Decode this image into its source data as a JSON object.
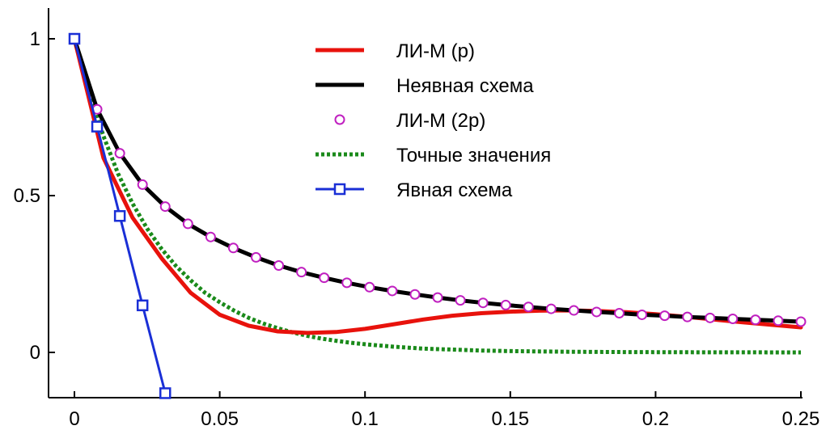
{
  "chart_data": {
    "type": "line",
    "xlim": [
      0,
      0.25
    ],
    "ylim": [
      -0.13,
      1.11
    ],
    "grid": false,
    "legend_placement": "top-center",
    "x_ticks": [
      0,
      0.05,
      0.1,
      0.15,
      0.2,
      0.25
    ],
    "x_tick_labels": [
      "0",
      "0.05",
      "0.1",
      "0.15",
      "0.2",
      "0.25"
    ],
    "y_ticks": [
      0,
      0.5,
      1
    ],
    "y_tick_labels": [
      "0",
      "0.5",
      "1"
    ],
    "series": [
      {
        "name": "ЛИ-М (p)",
        "color": "#e8120c",
        "style": "solid",
        "marker": "none",
        "x": [
          0,
          0.01,
          0.02,
          0.03,
          0.04,
          0.05,
          0.06,
          0.07,
          0.08,
          0.09,
          0.1,
          0.11,
          0.12,
          0.13,
          0.14,
          0.15,
          0.16,
          0.17,
          0.18,
          0.19,
          0.2,
          0.21,
          0.22,
          0.23,
          0.24,
          0.25
        ],
        "y": [
          1,
          0.62,
          0.43,
          0.3,
          0.19,
          0.12,
          0.085,
          0.067,
          0.062,
          0.065,
          0.075,
          0.09,
          0.105,
          0.117,
          0.125,
          0.13,
          0.133,
          0.134,
          0.132,
          0.128,
          0.122,
          0.114,
          0.105,
          0.096,
          0.088,
          0.08
        ]
      },
      {
        "name": "Неявная схема",
        "color": "#000000",
        "style": "solid",
        "marker": "none",
        "x": [
          0,
          0.0078125,
          0.015625,
          0.0234375,
          0.03125,
          0.0390625,
          0.046875,
          0.0546875,
          0.0625,
          0.0703125,
          0.078125,
          0.0859375,
          0.09375,
          0.1015625,
          0.109375,
          0.1171875,
          0.125,
          0.1328125,
          0.140625,
          0.1484375,
          0.15625,
          0.1640625,
          0.171875,
          0.1796875,
          0.1875,
          0.1953125,
          0.203125,
          0.2109375,
          0.21875,
          0.2265625,
          0.234375,
          0.2421875,
          0.25
        ],
        "y": [
          1,
          0.775,
          0.635,
          0.535,
          0.465,
          0.41,
          0.368,
          0.333,
          0.303,
          0.277,
          0.256,
          0.238,
          0.222,
          0.208,
          0.196,
          0.185,
          0.175,
          0.166,
          0.158,
          0.151,
          0.145,
          0.139,
          0.134,
          0.129,
          0.125,
          0.12,
          0.117,
          0.113,
          0.11,
          0.107,
          0.104,
          0.101,
          0.098
        ]
      },
      {
        "name": "ЛИ-М (2p)",
        "color": "#c020c0",
        "style": "none",
        "marker": "circle",
        "x": [
          0,
          0.0078125,
          0.015625,
          0.0234375,
          0.03125,
          0.0390625,
          0.046875,
          0.0546875,
          0.0625,
          0.0703125,
          0.078125,
          0.0859375,
          0.09375,
          0.1015625,
          0.109375,
          0.1171875,
          0.125,
          0.1328125,
          0.140625,
          0.1484375,
          0.15625,
          0.1640625,
          0.171875,
          0.1796875,
          0.1875,
          0.1953125,
          0.203125,
          0.2109375,
          0.21875,
          0.2265625,
          0.234375,
          0.2421875,
          0.25
        ],
        "y": [
          1,
          0.775,
          0.635,
          0.535,
          0.465,
          0.41,
          0.368,
          0.333,
          0.303,
          0.277,
          0.256,
          0.238,
          0.222,
          0.208,
          0.196,
          0.185,
          0.175,
          0.166,
          0.158,
          0.151,
          0.145,
          0.139,
          0.134,
          0.129,
          0.125,
          0.12,
          0.117,
          0.113,
          0.11,
          0.107,
          0.104,
          0.101,
          0.098
        ]
      },
      {
        "name": "Точные значения",
        "color": "#1a8a1a",
        "style": "dotted",
        "marker": "none",
        "x": [
          0,
          0.005,
          0.01,
          0.015,
          0.02,
          0.025,
          0.03,
          0.035,
          0.04,
          0.045,
          0.05,
          0.055,
          0.06,
          0.065,
          0.07,
          0.075,
          0.08,
          0.085,
          0.09,
          0.095,
          0.1,
          0.11,
          0.12,
          0.13,
          0.14,
          0.15,
          0.17,
          0.19,
          0.21,
          0.23,
          0.25
        ],
        "y": [
          1,
          0.83,
          0.69,
          0.57,
          0.475,
          0.395,
          0.33,
          0.275,
          0.23,
          0.19,
          0.16,
          0.133,
          0.11,
          0.092,
          0.077,
          0.064,
          0.053,
          0.044,
          0.037,
          0.031,
          0.026,
          0.018,
          0.012,
          0.009,
          0.006,
          0.004,
          0.002,
          0.001,
          0.0005,
          0.0002,
          0
        ]
      },
      {
        "name": " Явная схема",
        "color": "#1a2fd6",
        "style": "solid",
        "marker": "square",
        "x": [
          0,
          0.0078125,
          0.015625,
          0.0234375,
          0.03125
        ],
        "y": [
          1,
          0.72,
          0.435,
          0.15,
          -0.13
        ]
      }
    ]
  }
}
